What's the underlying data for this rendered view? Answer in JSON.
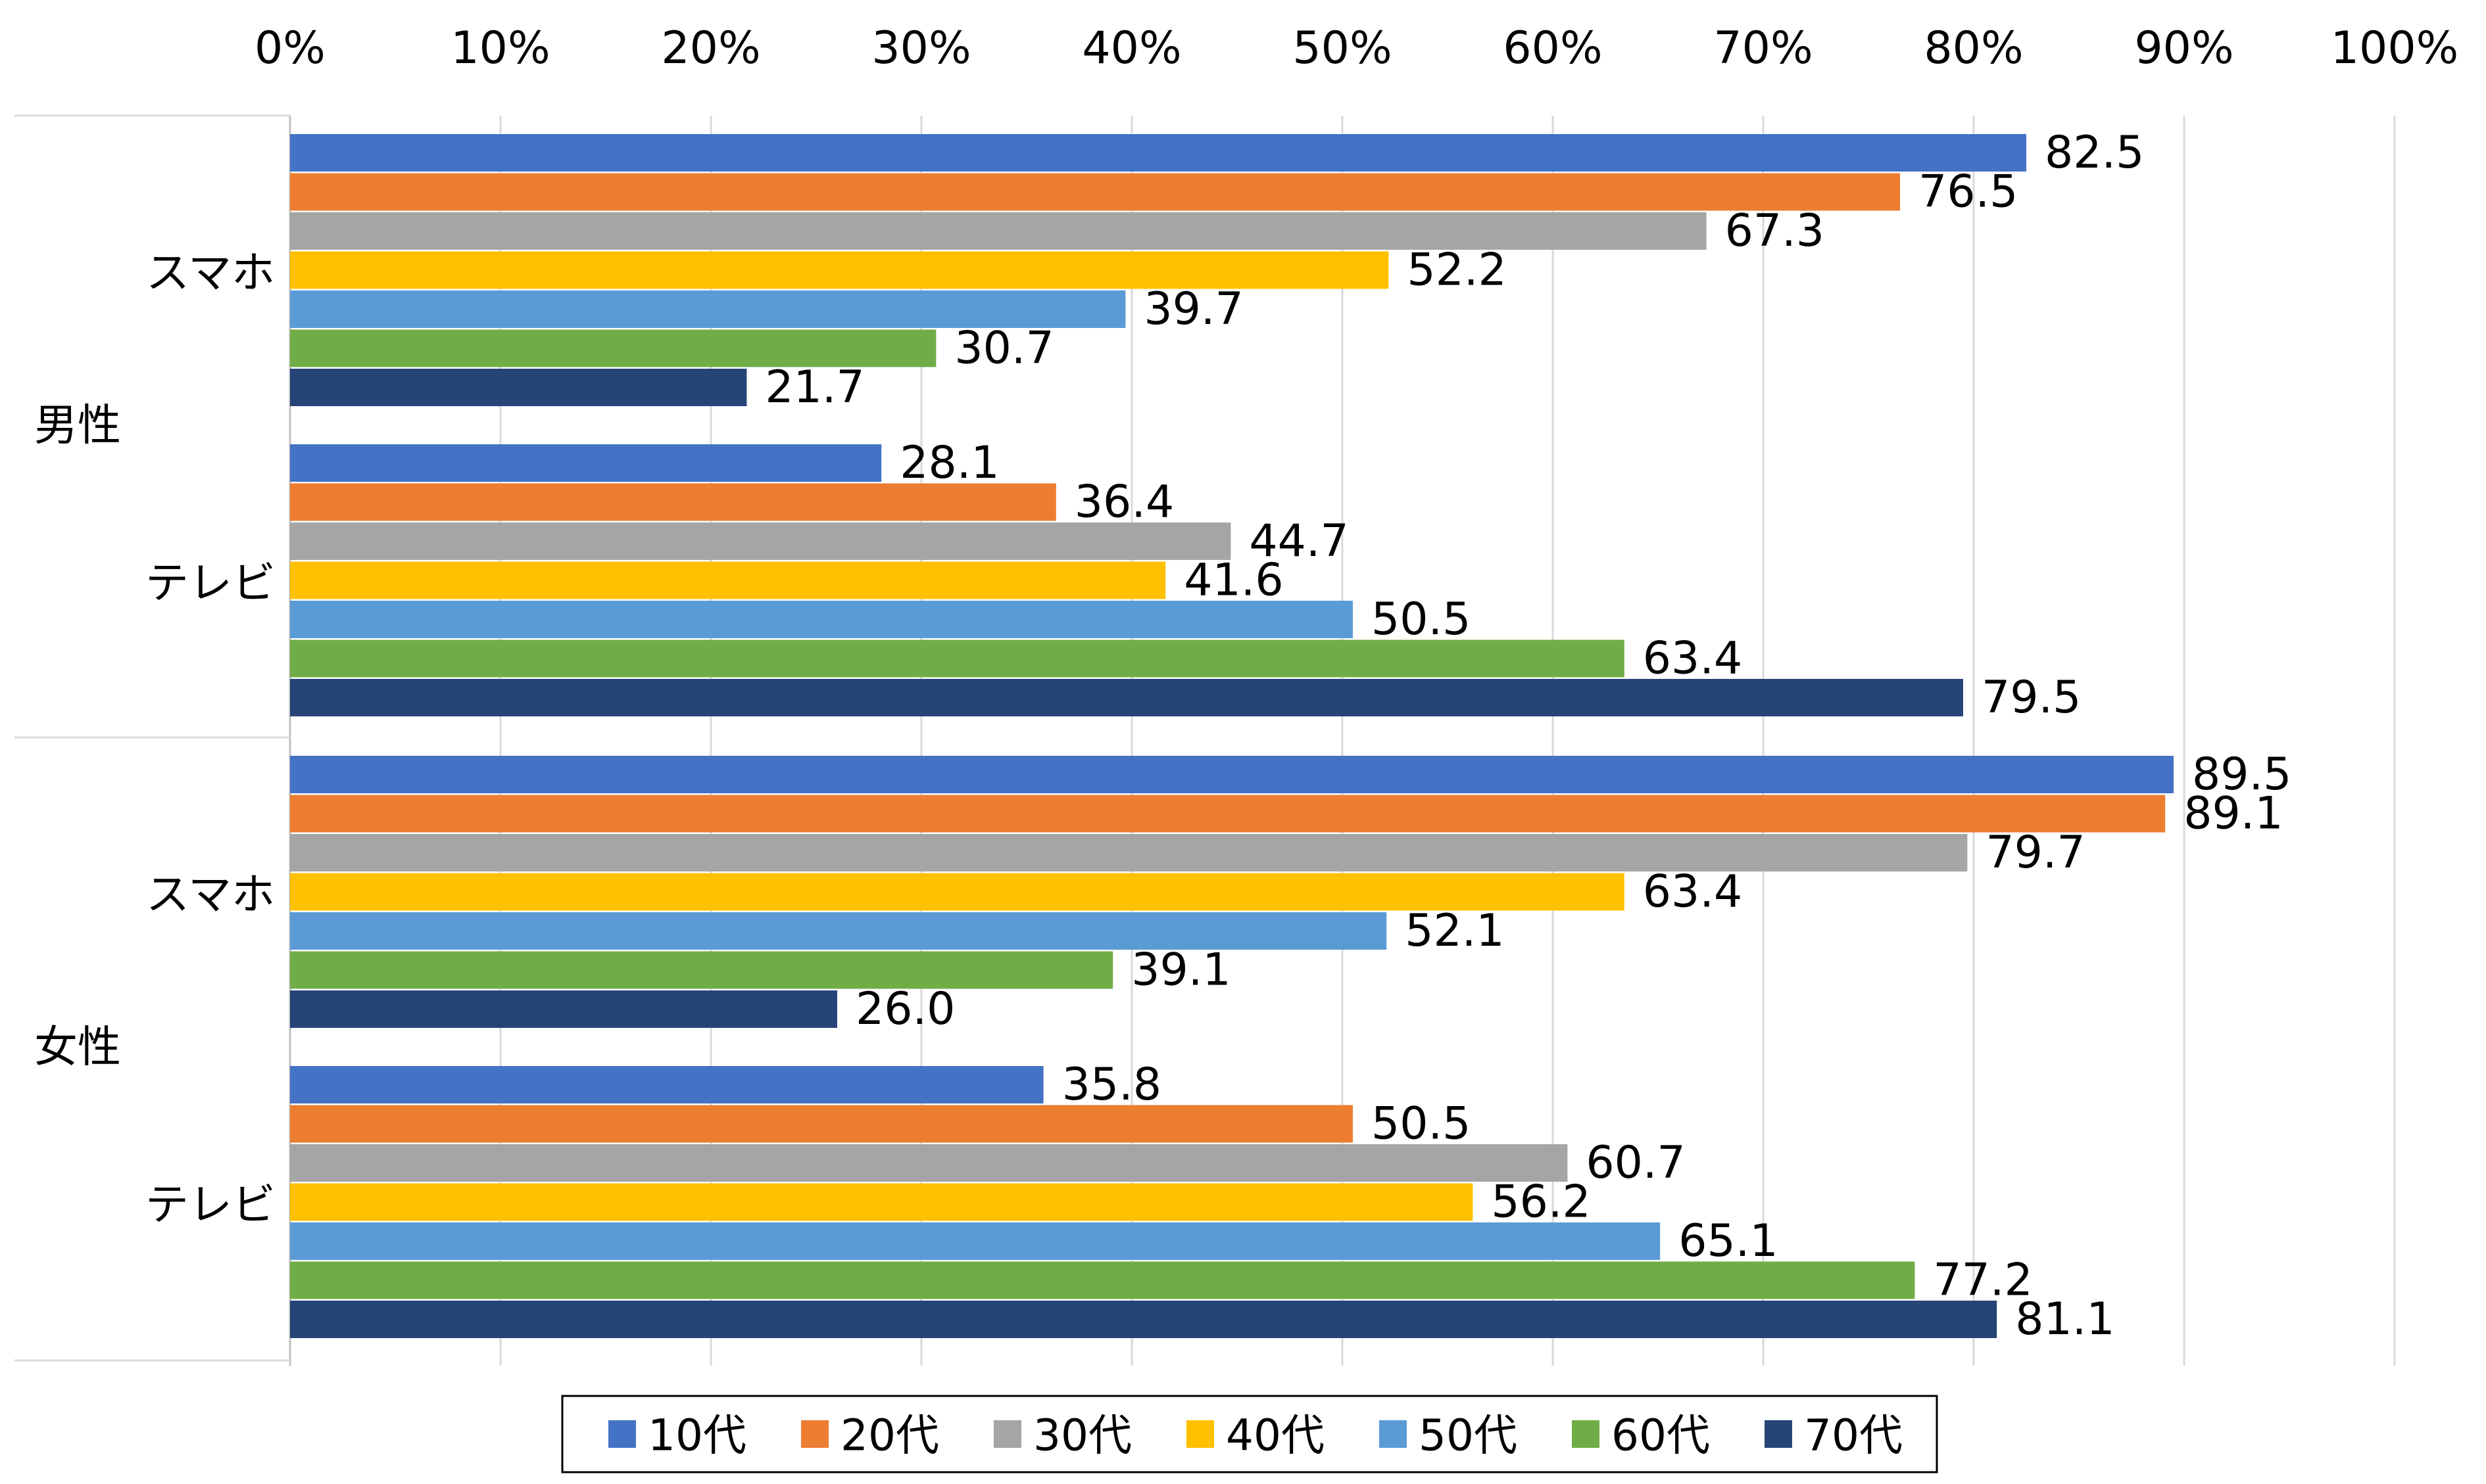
{
  "chart_data": {
    "type": "bar",
    "orientation": "horizontal",
    "x_axis": {
      "min": 0,
      "max": 100,
      "step": 10,
      "position": "top",
      "tick_labels": [
        "0%",
        "10%",
        "20%",
        "30%",
        "40%",
        "50%",
        "60%",
        "70%",
        "80%",
        "90%",
        "100%"
      ]
    },
    "grid": true,
    "legend_position": "bottom",
    "groups": [
      {
        "label": "男性",
        "subgroups": [
          {
            "label": "スマホ",
            "values": [
              82.5,
              76.5,
              67.3,
              52.2,
              39.7,
              30.7,
              21.7
            ],
            "value_labels": [
              "82.5",
              "76.5",
              "67.3",
              "52.2",
              "39.7",
              "30.7",
              "21.7"
            ]
          },
          {
            "label": "テレビ",
            "values": [
              28.1,
              36.4,
              44.7,
              41.6,
              50.5,
              63.4,
              79.5
            ],
            "value_labels": [
              "28.1",
              "36.4",
              "44.7",
              "41.6",
              "50.5",
              "63.4",
              "79.5"
            ]
          }
        ]
      },
      {
        "label": "女性",
        "subgroups": [
          {
            "label": "スマホ",
            "values": [
              89.5,
              89.1,
              79.7,
              63.4,
              52.1,
              39.1,
              26.0
            ],
            "value_labels": [
              "89.5",
              "89.1",
              "79.7",
              "63.4",
              "52.1",
              "39.1",
              "26.0"
            ]
          },
          {
            "label": "テレビ",
            "values": [
              35.8,
              50.5,
              60.7,
              56.2,
              65.1,
              77.2,
              81.1
            ],
            "value_labels": [
              "35.8",
              "50.5",
              "60.7",
              "56.2",
              "65.1",
              "77.2",
              "81.1"
            ]
          }
        ]
      }
    ],
    "series": [
      {
        "name": "10代",
        "color": "#4472C4"
      },
      {
        "name": "20代",
        "color": "#ED7D31"
      },
      {
        "name": "30代",
        "color": "#A5A5A5"
      },
      {
        "name": "40代",
        "color": "#FFC000"
      },
      {
        "name": "50代",
        "color": "#5B9BD5"
      },
      {
        "name": "60代",
        "color": "#70AD47"
      },
      {
        "name": "70代",
        "color": "#264478"
      }
    ]
  }
}
